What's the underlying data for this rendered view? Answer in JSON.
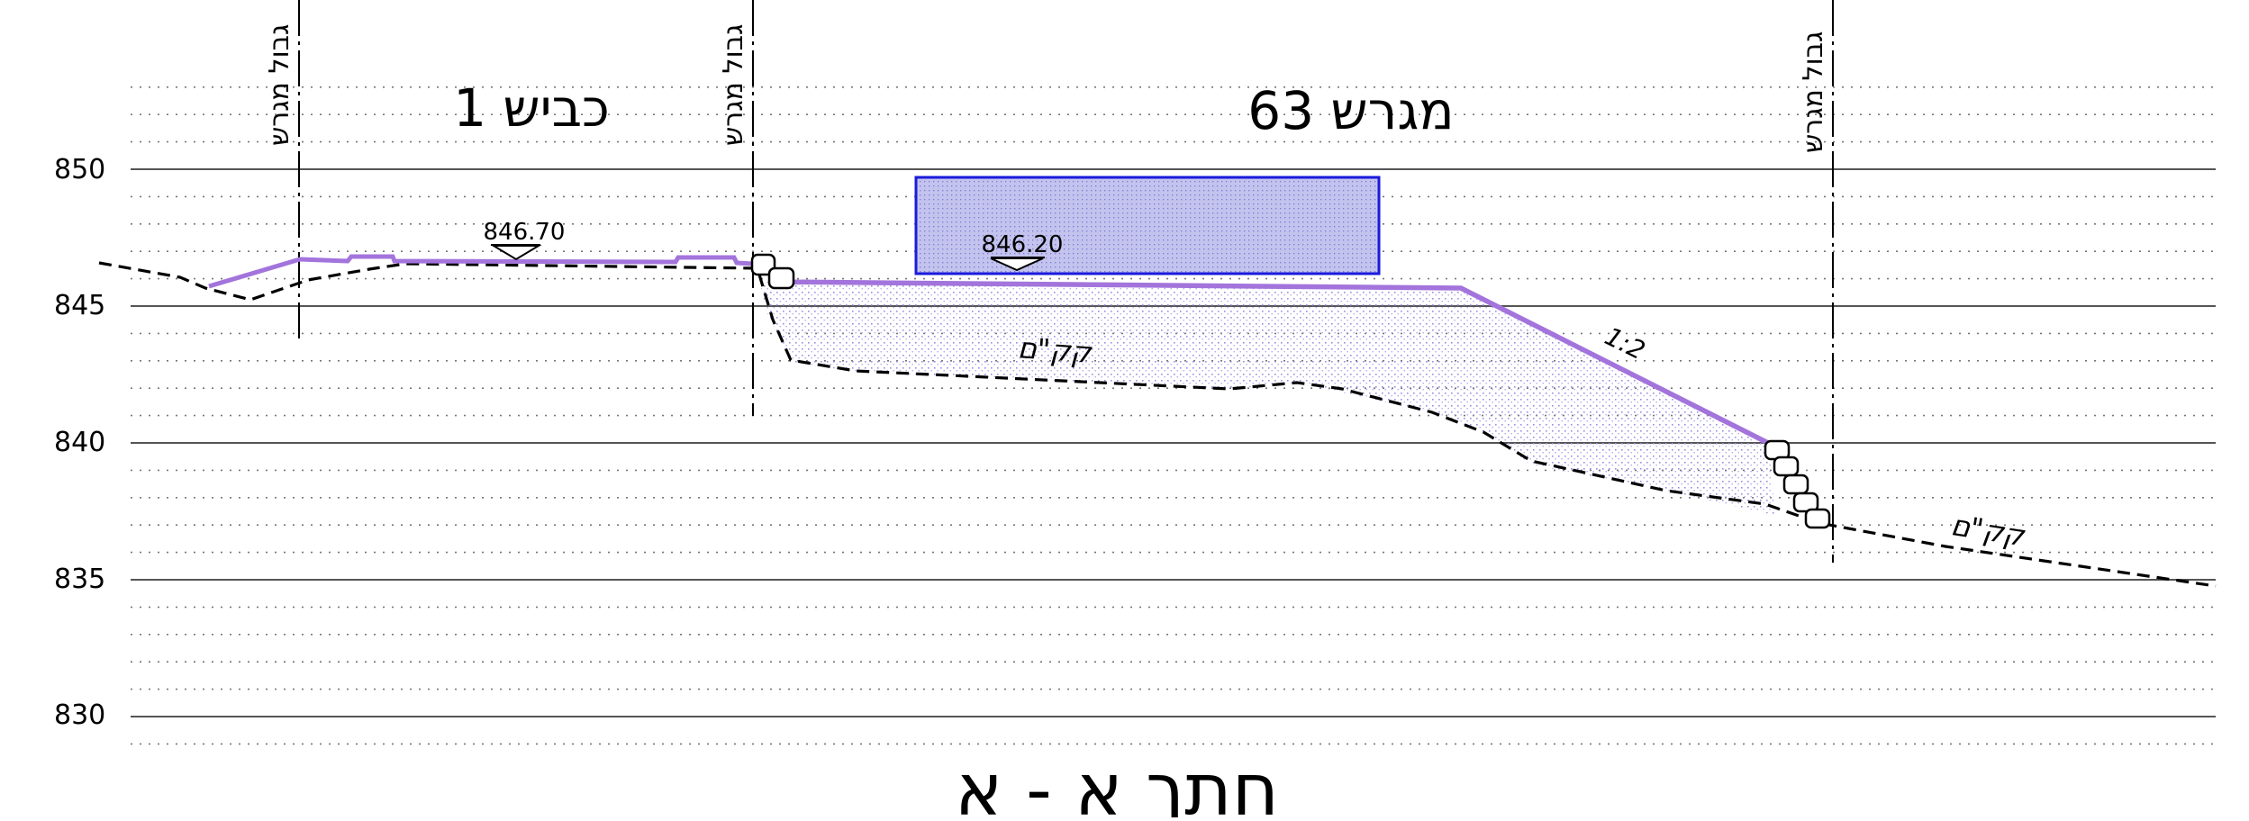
{
  "colors": {
    "background": "#ffffff",
    "design_grade": "#a374dc",
    "building_stroke": "#1a1adc",
    "building_fill": "#c8c8f0",
    "fill_dots": "#9b8ee0",
    "existing_ground": "#000000",
    "grid_major": "#555555",
    "grid_minor": "#777777"
  },
  "elevation_axis": {
    "ticks": [
      "850",
      "845",
      "840",
      "835",
      "830"
    ]
  },
  "boundaries": {
    "label": "גבול מגרש"
  },
  "lots": {
    "road": "כביש 1",
    "plot": "מגרש 63"
  },
  "levels": {
    "road_level": "846.70",
    "plot_level": "846.20"
  },
  "annotations": {
    "existing_ground_left": "קק\"ם",
    "existing_ground_right": "קק\"ם",
    "slope": "1:2"
  },
  "section_title": "חתך א - א",
  "icons": {
    "level_marker": "triangle-down-icon",
    "retaining_stones": "stacked-stones-icon"
  }
}
